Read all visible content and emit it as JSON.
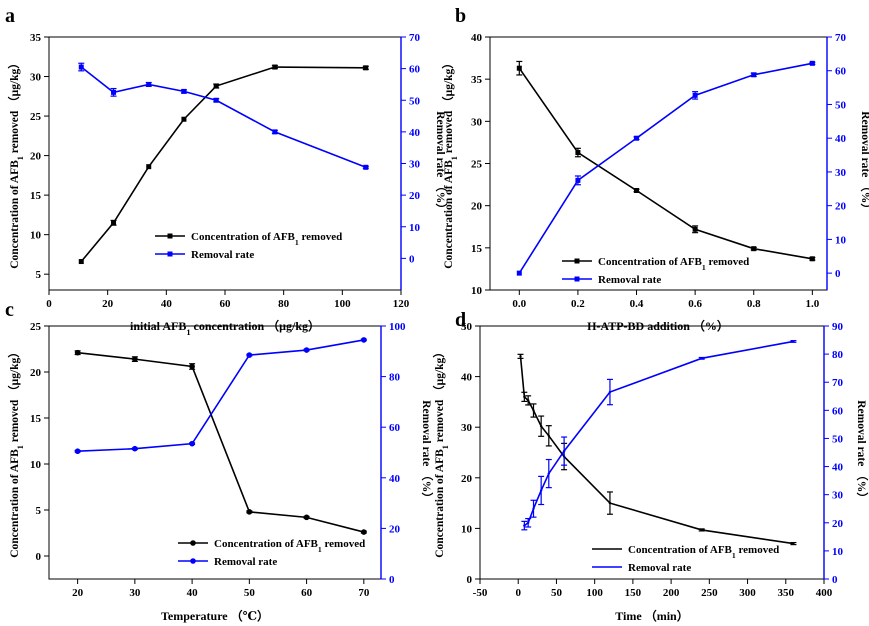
{
  "colors": {
    "black_series": "#000000",
    "blue_series": "#0000ff"
  },
  "chart_data": [
    {
      "panel": "a",
      "type": "line",
      "xlabel": "initial AFB",
      "xlabel_sub": "1",
      "xlabel_tail": "  concentration （μg/kg）",
      "ylabel_left": "Concentration of AFB",
      "ylabel_left_sub": "1",
      "ylabel_left_tail": " removed （μg/kg）",
      "ylabel_right": "Removal rate （%）",
      "xlim": [
        0,
        120
      ],
      "xticks": [
        0,
        20,
        40,
        60,
        80,
        100,
        120
      ],
      "ylim_left": [
        3,
        35
      ],
      "yticks_left": [
        5,
        10,
        15,
        20,
        25,
        30,
        35
      ],
      "ylim_right": [
        -10,
        70
      ],
      "yticks_right": [
        0,
        10,
        20,
        30,
        40,
        50,
        60,
        70
      ],
      "legend": "center-right",
      "series": [
        {
          "name": "Concentration of AFB",
          "name_sub": "1",
          "name_tail": " removed",
          "axis": "left",
          "color": "#000000",
          "marker": "square",
          "x": [
            11,
            22,
            34,
            46,
            57,
            77,
            108
          ],
          "y": [
            6.6,
            11.5,
            18.6,
            24.6,
            28.8,
            31.2,
            31.1
          ],
          "err": [
            0,
            0.3,
            0,
            0,
            0.25,
            0.2,
            0.2
          ]
        },
        {
          "name": "Removal rate",
          "axis": "right",
          "color": "#0000ff",
          "marker": "square",
          "x": [
            11,
            22,
            34,
            46,
            57,
            77,
            108
          ],
          "y": [
            60.5,
            52.5,
            55,
            52.8,
            50,
            40,
            28.8
          ],
          "err": [
            1.2,
            1.2,
            0.6,
            0.5,
            0.5,
            0.5,
            0.3
          ]
        }
      ]
    },
    {
      "panel": "b",
      "type": "line",
      "xlabel": "H-ATP-BD  addition （%）",
      "ylabel_left": "Concentration of AFB",
      "ylabel_left_sub": "1",
      "ylabel_left_tail": " removed （μg/kg）",
      "ylabel_right": "Removal rate （%）",
      "xlim": [
        -0.1,
        1.05
      ],
      "xticks": [
        0.0,
        0.2,
        0.4,
        0.6,
        0.8,
        1.0
      ],
      "ylim_left": [
        10,
        40
      ],
      "yticks_left": [
        10,
        15,
        20,
        25,
        30,
        35,
        40
      ],
      "ylim_right": [
        -5,
        70
      ],
      "yticks_right": [
        0,
        10,
        20,
        30,
        40,
        50,
        60,
        70
      ],
      "legend": "bottom-right",
      "series": [
        {
          "name": "Concentration of AFB",
          "name_sub": "1",
          "name_tail": " removed",
          "axis": "left",
          "color": "#000000",
          "marker": "square",
          "x": [
            0.0,
            0.2,
            0.4,
            0.6,
            0.8,
            1.0
          ],
          "y": [
            36.3,
            26.3,
            21.8,
            17.2,
            14.9,
            13.7
          ],
          "err": [
            0.8,
            0.5,
            0.15,
            0.4,
            0.15,
            0.15
          ]
        },
        {
          "name": "Removal rate",
          "axis": "right",
          "color": "#0000ff",
          "marker": "square",
          "x": [
            0.0,
            0.2,
            0.4,
            0.6,
            0.8,
            1.0
          ],
          "y": [
            0,
            27.5,
            40,
            52.7,
            58.8,
            62.2
          ],
          "err": [
            0,
            1.3,
            0.4,
            1.1,
            0.5,
            0.3
          ]
        }
      ]
    },
    {
      "panel": "c",
      "type": "line",
      "xlabel": "Temperature （℃）",
      "ylabel_left": "Concentration of AFB",
      "ylabel_left_sub": "1",
      "ylabel_left_tail": " removed （μg/kg）",
      "ylabel_right": "Removal rate （%）",
      "xlim": [
        15,
        73
      ],
      "xticks": [
        20,
        30,
        40,
        50,
        60,
        70
      ],
      "ylim_left": [
        -2.5,
        25
      ],
      "yticks_left": [
        0,
        5,
        10,
        15,
        20,
        25
      ],
      "ylim_right": [
        0,
        100
      ],
      "yticks_right": [
        0,
        20,
        40,
        60,
        80,
        100
      ],
      "legend": "bottom-center",
      "series": [
        {
          "name": "Concentration of AFB",
          "name_sub": "1",
          "name_tail": " removed",
          "axis": "left",
          "color": "#000000",
          "marker": "circle",
          "x": [
            20,
            30,
            40,
            50,
            60,
            70
          ],
          "y": [
            22.1,
            21.4,
            20.6,
            4.8,
            4.2,
            2.6
          ],
          "err": [
            0.2,
            0.25,
            0.3,
            0.1,
            0.1,
            0.1
          ]
        },
        {
          "name": "Removal rate",
          "axis": "right",
          "color": "#0000ff",
          "marker": "circle",
          "x": [
            20,
            30,
            40,
            50,
            60,
            70
          ],
          "y": [
            50.5,
            51.5,
            53.5,
            88.5,
            90.5,
            94.5
          ],
          "err": [
            0.3,
            0.3,
            0.3,
            0.3,
            0.3,
            0.3
          ]
        }
      ]
    },
    {
      "panel": "d",
      "type": "line",
      "xlabel": "Time （min）",
      "ylabel_left": "Concentration of AFB",
      "ylabel_left_sub": "1",
      "ylabel_left_tail": " removed （μg/kg）",
      "ylabel_right": "Removal rate （%）",
      "xlim": [
        -50,
        400
      ],
      "xticks": [
        -50,
        0,
        50,
        100,
        150,
        200,
        250,
        300,
        350,
        400
      ],
      "ylim_left": [
        0,
        50
      ],
      "yticks_left": [
        0,
        10,
        20,
        30,
        40,
        50
      ],
      "ylim_right": [
        0,
        90
      ],
      "yticks_right": [
        0,
        10,
        20,
        30,
        40,
        50,
        60,
        70,
        80,
        90
      ],
      "legend": "bottom-center",
      "series": [
        {
          "name": "Concentration of AFB",
          "name_sub": "1",
          "name_tail": " removed",
          "axis": "left",
          "color": "#000000",
          "marker": "none",
          "x": [
            3,
            8,
            13,
            20,
            30,
            40,
            60,
            120,
            240,
            360
          ],
          "y": [
            44,
            36,
            35.3,
            33.3,
            30.2,
            28.3,
            24.2,
            15,
            9.7,
            7
          ],
          "err": [
            0.4,
            0.9,
            0.9,
            1.3,
            2.0,
            2.0,
            2.6,
            2.2,
            0.2,
            0.2
          ]
        },
        {
          "name": "Removal rate",
          "axis": "right",
          "color": "#0000ff",
          "marker": "none",
          "x": [
            8,
            13,
            20,
            30,
            40,
            60,
            120,
            240,
            360
          ],
          "y": [
            19,
            20,
            25,
            31.5,
            37.5,
            45.5,
            66.5,
            78.5,
            84.5
          ],
          "err": [
            1.5,
            1.5,
            3.0,
            5.0,
            5.0,
            5.0,
            4.5,
            0.3,
            0.3
          ]
        }
      ]
    }
  ]
}
